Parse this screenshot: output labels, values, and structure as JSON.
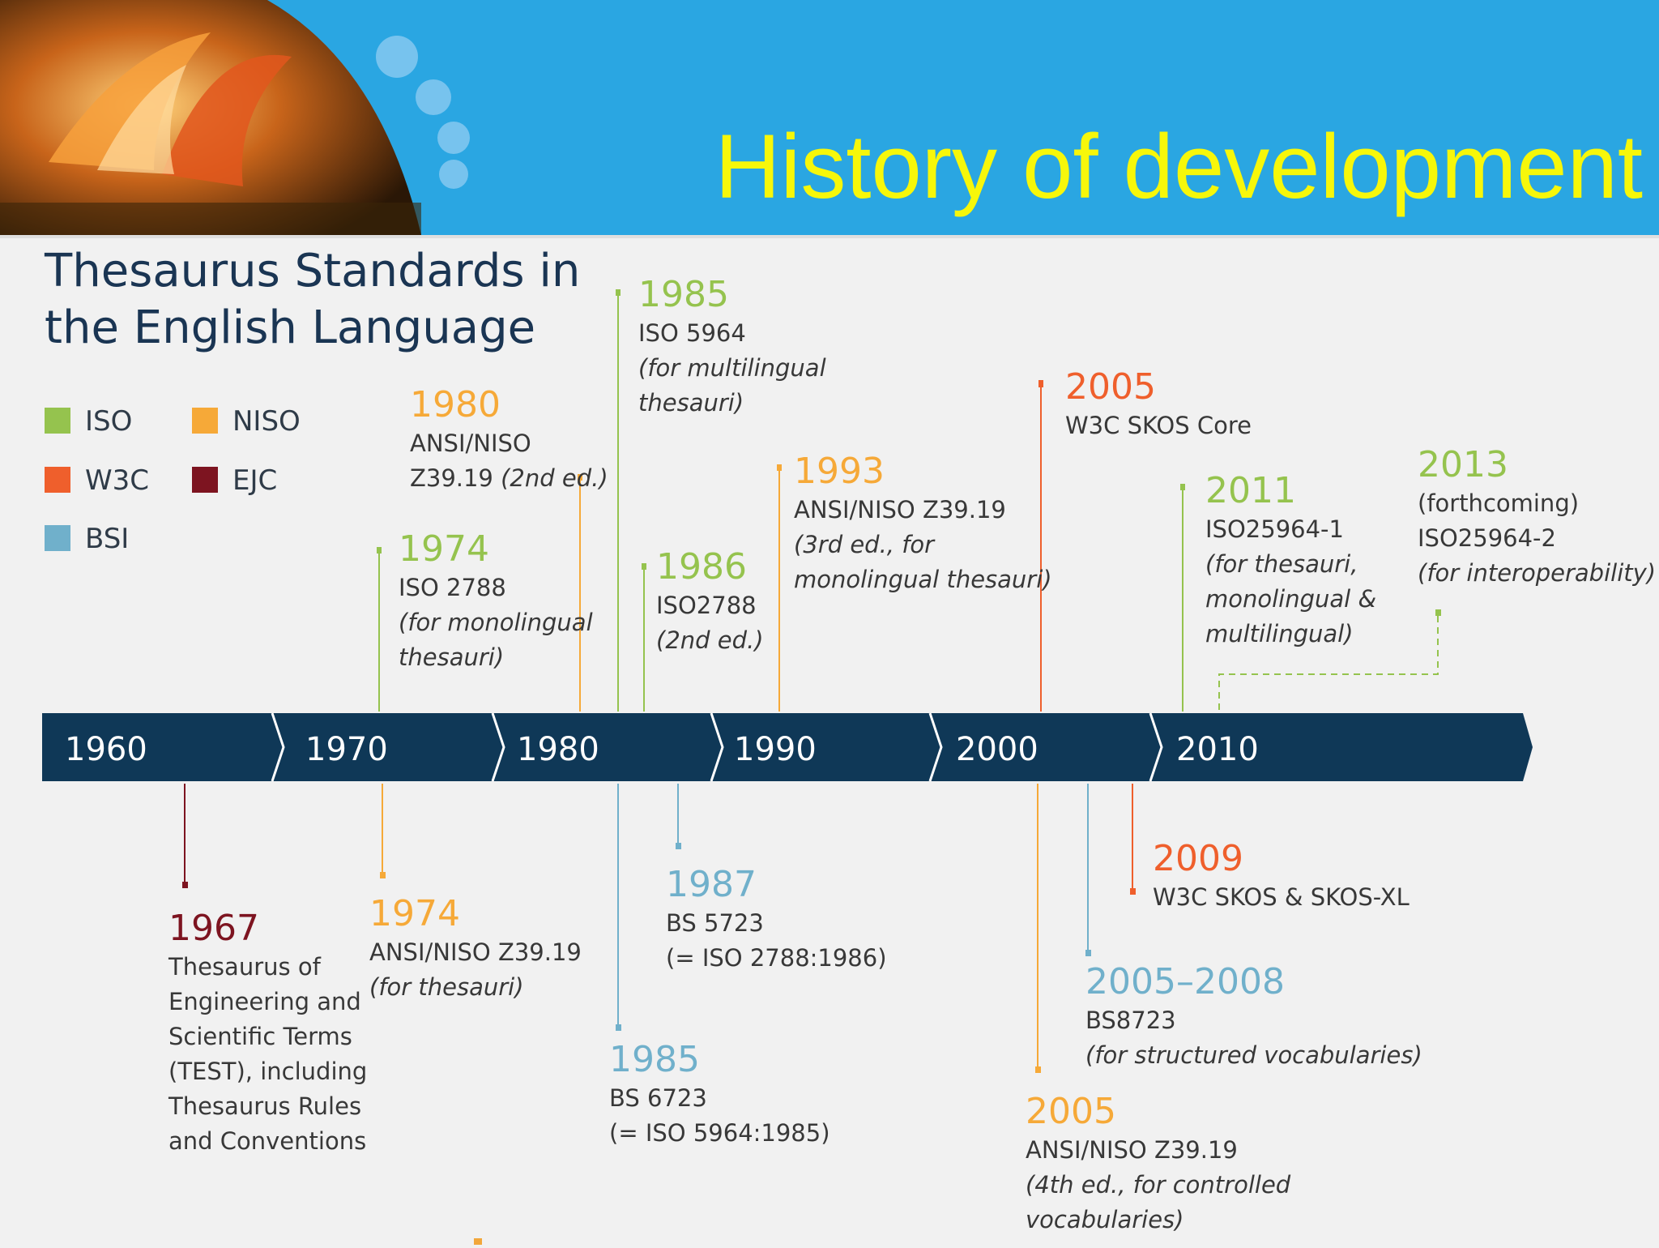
{
  "slide_title": "History of development",
  "diagram_title": [
    "Thesaurus Standards in",
    "the English Language"
  ],
  "colors": {
    "header_bg": "#2aa6e2",
    "title_yellow": "#f7f70a",
    "timeline_bar": "#0f3857",
    "iso": "#95c34e",
    "niso": "#f6a938",
    "w3c": "#ef5f2c",
    "ejc": "#7d1420",
    "bsi": "#70b0cb"
  },
  "legend": [
    {
      "key": "iso",
      "label": "ISO"
    },
    {
      "key": "niso",
      "label": "NISO"
    },
    {
      "key": "w3c",
      "label": "W3C"
    },
    {
      "key": "ejc",
      "label": "EJC"
    },
    {
      "key": "bsi",
      "label": "BSI"
    }
  ],
  "timeline": {
    "ticks": [
      "1960",
      "1970",
      "1980",
      "1990",
      "2000",
      "2010"
    ]
  },
  "events": [
    {
      "id": "e1974iso",
      "year": "1974",
      "org": "iso",
      "side": "above",
      "name": "ISO 2788",
      "note": [
        "(for monolingual",
        "thesauri)"
      ]
    },
    {
      "id": "e1980niso",
      "year": "1980",
      "org": "niso",
      "side": "above",
      "name": "ANSI/NISO",
      "name2": "Z39.19",
      "note_inline": "(2nd ed.)"
    },
    {
      "id": "e1985iso",
      "year": "1985",
      "org": "iso",
      "side": "above",
      "name": "ISO 5964",
      "note": [
        "(for multilingual",
        "thesauri)"
      ]
    },
    {
      "id": "e1986iso",
      "year": "1986",
      "org": "iso",
      "side": "above",
      "name": "ISO2788",
      "note": [
        "(2nd ed.)"
      ]
    },
    {
      "id": "e1993niso",
      "year": "1993",
      "org": "niso",
      "side": "above",
      "name": "ANSI/NISO Z39.19",
      "note": [
        "(3rd ed., for",
        "monolingual thesauri)"
      ]
    },
    {
      "id": "e2005w3c",
      "year": "2005",
      "org": "w3c",
      "side": "above",
      "name": "W3C SKOS Core"
    },
    {
      "id": "e2011iso",
      "year": "2011",
      "org": "iso",
      "side": "above",
      "name": "ISO25964-1",
      "note": [
        "(for thesauri,",
        "monolingual &",
        "multilingual)"
      ]
    },
    {
      "id": "e2013iso",
      "year": "2013",
      "org": "iso",
      "side": "above",
      "name": "(forthcoming)",
      "name2": "ISO25964-2",
      "note": [
        "(for interoperability)"
      ]
    },
    {
      "id": "e1967ejc",
      "year": "1967",
      "org": "ejc",
      "side": "below",
      "lines": [
        "Thesaurus of",
        "Engineering and",
        "Scientific Terms",
        "(TEST), including",
        "Thesaurus Rules",
        "and Conventions"
      ]
    },
    {
      "id": "e1974niso",
      "year": "1974",
      "org": "niso",
      "side": "below",
      "name": "ANSI/NISO Z39.19",
      "note": [
        "(for thesauri)"
      ]
    },
    {
      "id": "e1985bsi",
      "year": "1985",
      "org": "bsi",
      "side": "below",
      "name": "BS 6723",
      "name2": "(= ISO 5964:1985)"
    },
    {
      "id": "e1987bsi",
      "year": "1987",
      "org": "bsi",
      "side": "below",
      "name": "BS 5723",
      "name2": "(= ISO 2788:1986)"
    },
    {
      "id": "e2005niso",
      "year": "2005",
      "org": "niso",
      "side": "below",
      "name": "ANSI/NISO Z39.19",
      "note": [
        "(4th ed., for controlled",
        "vocabularies)"
      ]
    },
    {
      "id": "e2005bsi",
      "year": "2005–2008",
      "org": "bsi",
      "side": "below",
      "name": "BS8723",
      "note": [
        "(for structured vocabularies)"
      ]
    },
    {
      "id": "e2009w3c",
      "year": "2009",
      "org": "w3c",
      "side": "below",
      "name": "W3C SKOS & SKOS-XL"
    }
  ]
}
